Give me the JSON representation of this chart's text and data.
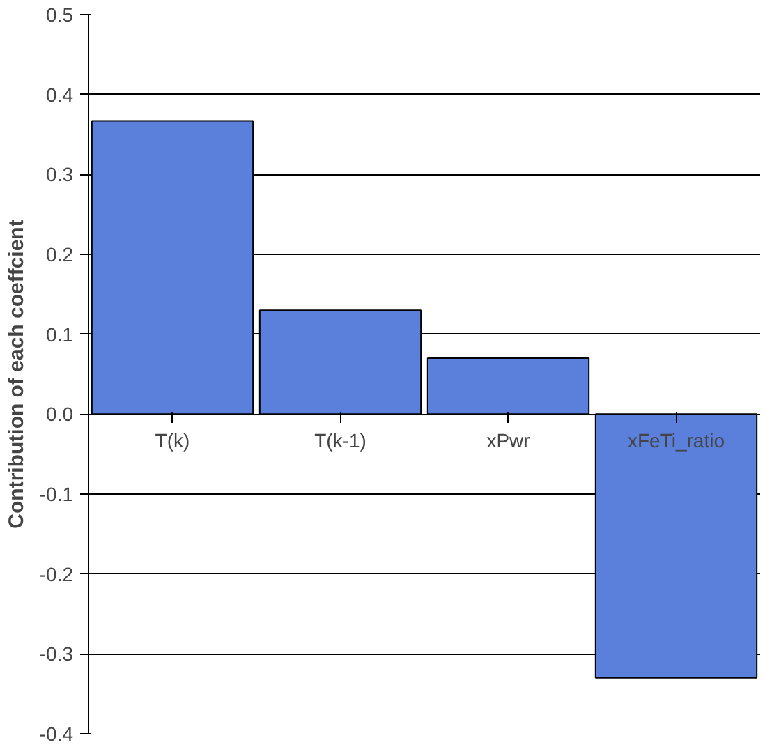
{
  "chart_data": {
    "type": "bar",
    "ylabel": "Contribution of each coeffcient",
    "categories": [
      "T(k)",
      "T(k-1)",
      "xPwr",
      "xFeTi_ratio"
    ],
    "values": [
      0.367,
      0.13,
      0.07,
      -0.33
    ],
    "color": "#5b80dc",
    "ylim": [
      -0.4,
      0.5
    ],
    "yticks": [
      {
        "value": -0.4,
        "label": "-0.4"
      },
      {
        "value": -0.3,
        "label": "-0.3"
      },
      {
        "value": -0.2,
        "label": "-0.2"
      },
      {
        "value": -0.1,
        "label": "-0.1"
      },
      {
        "value": 0,
        "label": "0.0"
      },
      {
        "value": 0.1,
        "label": "0.1"
      },
      {
        "value": 0.2,
        "label": "0.2"
      },
      {
        "value": 0.3,
        "label": "0.3"
      },
      {
        "value": 0.4,
        "label": "0.4"
      },
      {
        "value": 0.5,
        "label": "0.5"
      }
    ],
    "grid": "y"
  }
}
